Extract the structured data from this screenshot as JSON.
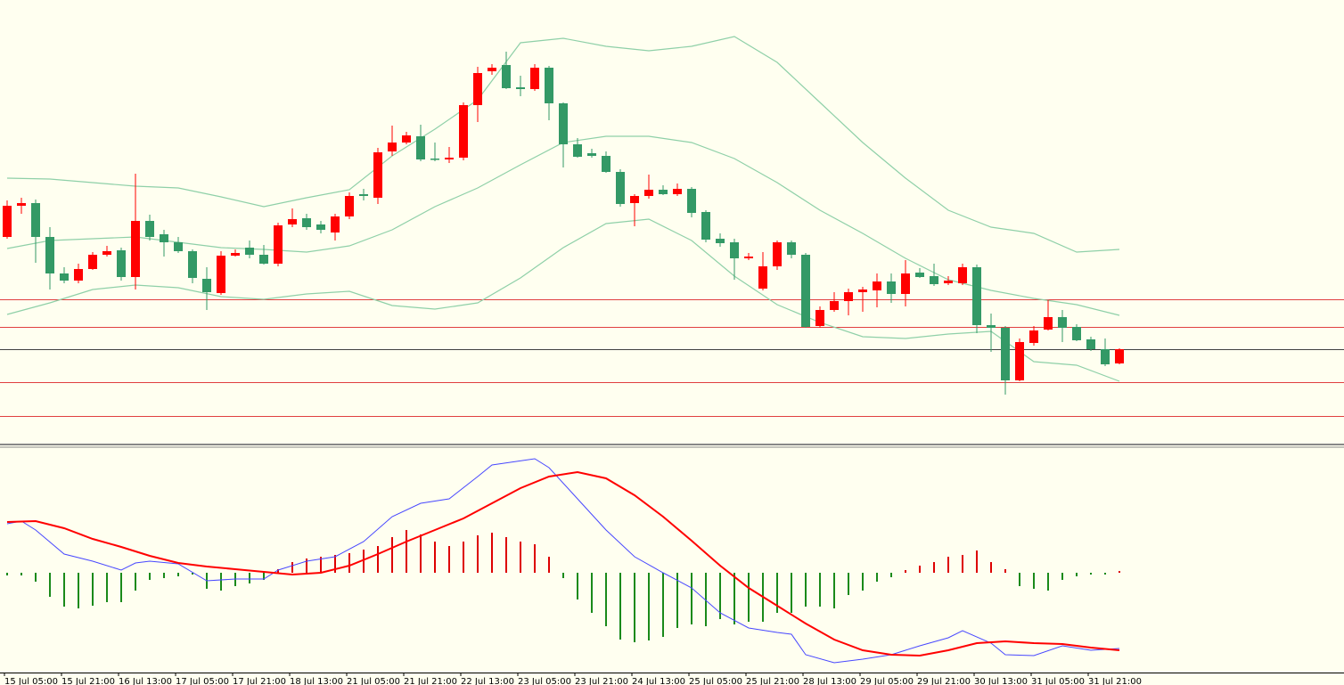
{
  "chart_data": [
    {
      "type": "candlestick",
      "categories": [
        "15 Jul 05:00",
        null,
        null,
        null,
        "15 Jul 21:00",
        null,
        null,
        null,
        "16 Jul 13:00",
        null,
        null,
        null,
        "17 Jul 05:00",
        null,
        null,
        null,
        "17 Jul 21:00",
        null,
        null,
        null,
        "18 Jul 13:00",
        null,
        null,
        null,
        "21 Jul 05:00",
        null,
        null,
        null,
        "21 Jul 21:00",
        null,
        null,
        null,
        "22 Jul 13:00",
        null,
        null,
        null,
        "23 Jul 05:00",
        null,
        null,
        null,
        "23 Jul 21:00",
        null,
        null,
        null,
        "24 Jul 13:00",
        null,
        null,
        null,
        "25 Jul 05:00",
        null,
        null,
        null,
        "25 Jul 21:00",
        null,
        null,
        null,
        "28 Jul 13:00",
        null,
        null,
        null,
        "29 Jul 05:00",
        null,
        null,
        null,
        "29 Jul 21:00",
        null,
        null,
        null,
        "30 Jul 13:00",
        null,
        null,
        null,
        "31 Jul 05:00",
        null,
        null,
        null,
        "31 Jul 21:00",
        null,
        null
      ],
      "candles": [
        [
          234,
          275,
          232,
          269
        ],
        [
          269,
          278,
          260,
          272
        ],
        [
          272,
          276,
          205,
          234
        ],
        [
          234,
          245,
          175,
          193
        ],
        [
          193,
          200,
          182,
          185
        ],
        [
          185,
          204,
          182,
          198
        ],
        [
          198,
          217,
          197,
          214
        ],
        [
          214,
          224,
          212,
          218
        ],
        [
          219,
          222,
          185,
          189
        ],
        [
          189,
          305,
          175,
          252
        ],
        [
          252,
          259,
          230,
          234
        ],
        [
          237,
          242,
          212,
          228
        ],
        [
          228,
          234,
          216,
          218
        ],
        [
          218,
          220,
          182,
          188
        ],
        [
          187,
          200,
          152,
          172
        ],
        [
          171,
          218,
          169,
          213
        ],
        [
          213,
          220,
          212,
          216
        ],
        [
          222,
          230,
          210,
          214
        ],
        [
          214,
          225,
          203,
          204
        ],
        [
          204,
          250,
          201,
          247
        ],
        [
          248,
          266,
          245,
          254
        ],
        [
          255,
          260,
          242,
          245
        ],
        [
          248,
          252,
          238,
          242
        ],
        [
          239,
          260,
          230,
          257
        ],
        [
          257,
          284,
          254,
          280
        ],
        [
          282,
          288,
          275,
          280
        ],
        [
          278,
          334,
          271,
          329
        ],
        [
          330,
          359,
          325,
          340
        ],
        [
          340,
          352,
          338,
          348
        ],
        [
          347,
          360,
          319,
          321
        ],
        [
          322,
          340,
          319,
          321
        ],
        [
          321,
          335,
          317,
          323
        ],
        [
          323,
          385,
          320,
          382
        ],
        [
          382,
          425,
          363,
          418
        ],
        [
          420,
          428,
          416,
          424
        ],
        [
          427,
          442,
          400,
          401
        ],
        [
          402,
          415,
          392,
          400
        ],
        [
          400,
          428,
          398,
          424
        ],
        [
          424,
          426,
          365,
          384
        ],
        [
          384,
          385,
          312,
          338
        ],
        [
          338,
          345,
          323,
          324
        ],
        [
          328,
          333,
          323,
          325
        ],
        [
          325,
          330,
          306,
          307
        ],
        [
          307,
          310,
          268,
          271
        ],
        [
          272,
          282,
          246,
          280
        ],
        [
          280,
          304,
          277,
          287
        ],
        [
          287,
          292,
          281,
          282
        ],
        [
          282,
          294,
          280,
          288
        ],
        [
          288,
          290,
          256,
          261
        ],
        [
          262,
          264,
          228,
          231
        ],
        [
          232,
          238,
          223,
          227
        ],
        [
          228,
          232,
          186,
          210
        ],
        [
          210,
          216,
          208,
          212
        ],
        [
          176,
          217,
          174,
          201
        ],
        [
          201,
          230,
          197,
          228
        ],
        [
          228,
          230,
          210,
          214
        ],
        [
          214,
          216,
          132,
          133
        ],
        [
          134,
          156,
          132,
          152
        ],
        [
          152,
          172,
          150,
          162
        ],
        [
          162,
          176,
          146,
          172
        ],
        [
          172,
          178,
          150,
          175
        ],
        [
          174,
          193,
          155,
          184
        ],
        [
          184,
          193,
          160,
          170
        ],
        [
          170,
          208,
          156,
          193
        ],
        [
          194,
          199,
          188,
          189
        ],
        [
          190,
          204,
          179,
          181
        ],
        [
          182,
          190,
          180,
          185
        ],
        [
          182,
          204,
          180,
          200
        ],
        [
          200,
          203,
          126,
          135
        ],
        [
          135,
          148,
          105,
          132
        ],
        [
          132,
          134,
          57,
          73
        ],
        [
          73,
          120,
          72,
          116
        ],
        [
          115,
          134,
          112,
          129
        ],
        [
          130,
          163,
          129,
          144
        ],
        [
          144,
          152,
          116,
          132
        ],
        [
          133,
          136,
          117,
          118
        ],
        [
          119,
          122,
          106,
          108
        ],
        [
          108,
          120,
          89,
          91
        ],
        [
          92,
          109,
          91,
          108
        ]
      ],
      "up_color": "#ff0000",
      "down_color": "#339966",
      "ylim": [
        0,
        500
      ],
      "bands_x": [
        0,
        3,
        6,
        9,
        12,
        15,
        18,
        21,
        24,
        27,
        30,
        33,
        36,
        39,
        42,
        45,
        48,
        51,
        54,
        57,
        60,
        63,
        66,
        69,
        72,
        75,
        78
      ],
      "bands": [
        {
          "color": "#8fd0a8",
          "values": [
            300,
            299,
            295,
            291,
            289,
            279,
            268,
            278,
            287,
            325,
            355,
            388,
            452,
            457,
            448,
            443,
            448,
            459,
            430,
            385,
            340,
            300,
            264,
            245,
            238,
            217,
            220
          ]
        },
        {
          "color": "#8fd0a8",
          "values": [
            221,
            230,
            232,
            234,
            228,
            222,
            220,
            217,
            224,
            242,
            268,
            289,
            315,
            340,
            347,
            347,
            340,
            322,
            295,
            264,
            238,
            210,
            186,
            174,
            165,
            158,
            146
          ]
        },
        {
          "color": "#8fd0a8",
          "values": [
            147,
            160,
            175,
            180,
            177,
            167,
            164,
            170,
            173,
            157,
            153,
            160,
            188,
            222,
            249,
            254,
            230,
            190,
            158,
            138,
            122,
            120,
            125,
            128,
            94,
            90,
            72
          ]
        }
      ],
      "levels": [
        {
          "value": 164,
          "color": "#e04040"
        },
        {
          "value": 133,
          "color": "#e04040"
        },
        {
          "value": 108,
          "color": "#404040"
        },
        {
          "value": 71,
          "color": "#e04040"
        },
        {
          "value": 33,
          "color": "#e04040"
        }
      ]
    },
    {
      "type": "macd",
      "ylim": [
        -112,
        140
      ],
      "histogram": [
        -3,
        -3,
        -10,
        -27,
        -38,
        -40,
        -37,
        -33,
        -33,
        -20,
        -8,
        -6,
        -4,
        -2,
        -18,
        -20,
        -15,
        -12,
        -8,
        4,
        12,
        16,
        18,
        20,
        22,
        26,
        30,
        40,
        48,
        43,
        35,
        30,
        35,
        42,
        45,
        40,
        35,
        32,
        18,
        -6,
        -30,
        -45,
        -60,
        -75,
        -78,
        -76,
        -72,
        -62,
        -58,
        -60,
        -52,
        -58,
        -55,
        -55,
        -45,
        -45,
        -38,
        -38,
        -40,
        -25,
        -20,
        -10,
        -5,
        3,
        8,
        12,
        18,
        20,
        25,
        12,
        4,
        -15,
        -18,
        -20,
        -8,
        -4,
        -2,
        -2,
        2
      ],
      "pos_color": "#dd0000",
      "neg_color": "#1a8a1a",
      "series": [
        {
          "color": "#4848ff",
          "x": [
            0,
            1,
            2,
            4,
            6,
            8,
            9,
            10,
            12,
            14,
            16,
            18,
            19,
            21,
            23,
            25,
            27,
            29,
            31,
            33,
            34,
            37,
            38,
            40,
            42,
            44,
            46,
            48,
            50,
            52,
            54,
            55,
            56,
            58,
            60,
            62,
            64,
            66,
            67,
            69,
            70,
            72,
            74,
            76,
            78
          ],
          "values": [
            55,
            58,
            48,
            21,
            13,
            3,
            11,
            13,
            10,
            -9,
            -7,
            -7,
            3,
            13,
            18,
            35,
            63,
            78,
            83,
            108,
            121,
            128,
            118,
            83,
            48,
            18,
            0,
            -17,
            -45,
            -62,
            -67,
            -69,
            -92,
            -101,
            -97,
            -92,
            -82,
            -73,
            -65,
            -79,
            -92,
            -93,
            -82,
            -87,
            -85
          ]
        },
        {
          "color": "#ff0000",
          "x": [
            0,
            2,
            4,
            6,
            8,
            10,
            12,
            14,
            16,
            18,
            20,
            22,
            24,
            26,
            28,
            30,
            32,
            34,
            36,
            38,
            40,
            42,
            44,
            46,
            48,
            50,
            52,
            54,
            56,
            58,
            60,
            62,
            64,
            66,
            68,
            70,
            72,
            74,
            76,
            78
          ],
          "values": [
            57,
            58,
            50,
            38,
            29,
            19,
            11,
            7,
            4,
            1,
            -2,
            0,
            8,
            21,
            35,
            48,
            61,
            78,
            95,
            108,
            113,
            106,
            87,
            63,
            36,
            8,
            -17,
            -37,
            -57,
            -75,
            -87,
            -92,
            -93,
            -87,
            -79,
            -77,
            -79,
            -80,
            -84,
            -87
          ]
        }
      ]
    }
  ]
}
